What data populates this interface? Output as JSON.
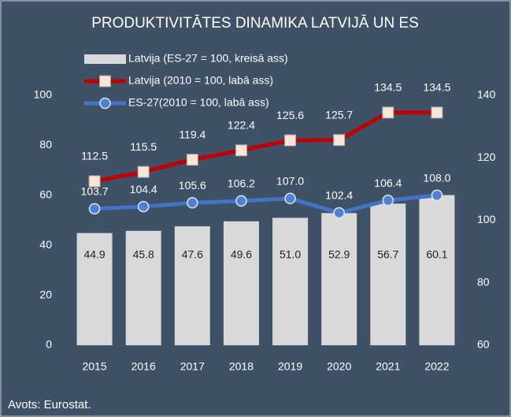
{
  "chart_data": {
    "type": "bar",
    "title": "PRODUKTIVITĀTES DINAMIKA LATVIJĀ UN ES",
    "source": "Avots: Eurostat.",
    "categories": [
      "2015",
      "2016",
      "2017",
      "2018",
      "2019",
      "2020",
      "2021",
      "2022"
    ],
    "series": [
      {
        "name": "Latvija (ES-27 = 100, kreisā ass)",
        "type": "bar",
        "axis": "y",
        "color": "#d9d9d9",
        "values": [
          44.9,
          45.8,
          47.6,
          49.6,
          51.0,
          52.9,
          56.7,
          60.1
        ],
        "value_labels": [
          "44.9",
          "45.8",
          "47.6",
          "49.6",
          "51.0",
          "52.9",
          "56.7",
          "60.1"
        ]
      },
      {
        "name": "Latvija (2010 = 100, labā ass)",
        "type": "line",
        "axis": "y2",
        "color": "#c00000",
        "marker": "square",
        "values": [
          112.5,
          115.5,
          119.4,
          122.4,
          125.6,
          125.7,
          134.5,
          134.5
        ],
        "value_labels": [
          "112.5",
          "115.5",
          "119.4",
          "122.4",
          "125.6",
          "125.7",
          "134.5",
          "134.5"
        ]
      },
      {
        "name": "ES-27(2010 = 100, labā ass)",
        "type": "line",
        "axis": "y2",
        "color": "#4472c4",
        "marker": "circle",
        "values": [
          103.7,
          104.4,
          105.6,
          106.2,
          107.0,
          102.4,
          106.4,
          108.0
        ],
        "value_labels": [
          "103.7",
          "104.4",
          "105.6",
          "106.2",
          "107.0",
          "102.4",
          "106.4",
          "108.0"
        ]
      }
    ],
    "ylim": [
      0,
      100
    ],
    "yticks": [
      0,
      20,
      40,
      60,
      80,
      100
    ],
    "y2lim": [
      60,
      140
    ],
    "y2ticks": [
      60,
      80,
      100,
      120,
      140
    ],
    "grid": false
  }
}
